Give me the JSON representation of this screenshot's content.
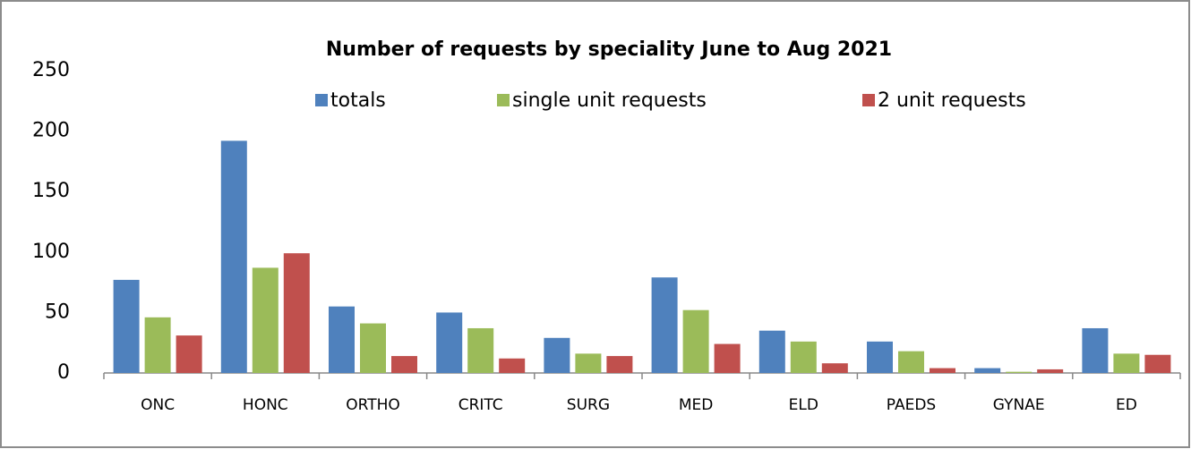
{
  "chart_data": {
    "type": "bar",
    "title": "Number of requests by speciality June to Aug 2021",
    "categories": [
      "ONC",
      "HONC",
      "ORTHO",
      "CRITC",
      "SURG",
      "MED",
      "ELD",
      "PAEDS",
      "GYNAE",
      "ED"
    ],
    "series": [
      {
        "name": "totals",
        "color": "#4f81bd",
        "values": [
          77,
          192,
          55,
          50,
          29,
          79,
          35,
          26,
          4,
          37
        ]
      },
      {
        "name": "single unit requests",
        "color": "#9bbb59",
        "values": [
          46,
          87,
          41,
          37,
          16,
          52,
          26,
          18,
          1,
          16
        ]
      },
      {
        "name": "2 unit requests",
        "color": "#c0504d",
        "values": [
          31,
          99,
          14,
          12,
          14,
          24,
          8,
          4,
          3,
          15
        ]
      }
    ],
    "ylim": [
      0,
      250
    ],
    "yticks": [
      0,
      50,
      100,
      150,
      200,
      250
    ],
    "grid": false,
    "legend": "top"
  }
}
